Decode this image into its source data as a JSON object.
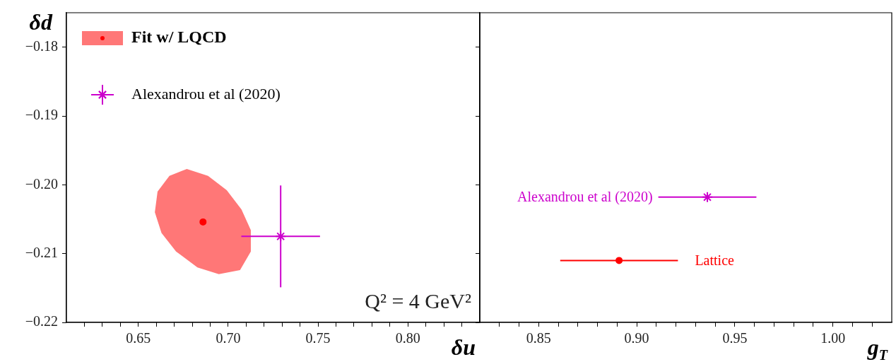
{
  "chart_data": [
    {
      "type": "scatter",
      "xlabel": "δu",
      "ylabel": "δd",
      "legend": "top left",
      "grid": false,
      "xlim": [
        0.61,
        0.84
      ],
      "ylim": [
        -0.22,
        -0.175
      ],
      "xticks": [
        {
          "value": 0.62,
          "label": null
        },
        {
          "value": 0.63,
          "label": null
        },
        {
          "value": 0.64,
          "label": null
        },
        {
          "value": 0.65,
          "label": "0.65"
        },
        {
          "value": 0.66,
          "label": null
        },
        {
          "value": 0.67,
          "label": null
        },
        {
          "value": 0.68,
          "label": null
        },
        {
          "value": 0.69,
          "label": null
        },
        {
          "value": 0.7,
          "label": "0.70"
        },
        {
          "value": 0.71,
          "label": null
        },
        {
          "value": 0.72,
          "label": null
        },
        {
          "value": 0.73,
          "label": null
        },
        {
          "value": 0.74,
          "label": null
        },
        {
          "value": 0.75,
          "label": "0.75"
        },
        {
          "value": 0.76,
          "label": null
        },
        {
          "value": 0.77,
          "label": null
        },
        {
          "value": 0.78,
          "label": null
        },
        {
          "value": 0.79,
          "label": null
        },
        {
          "value": 0.8,
          "label": "0.80"
        },
        {
          "value": 0.81,
          "label": null
        },
        {
          "value": 0.82,
          "label": null
        },
        {
          "value": 0.83,
          "label": null
        }
      ],
      "yticks": [
        {
          "value": -0.22,
          "label": "−0.22"
        },
        {
          "value": -0.21,
          "label": "−0.21"
        },
        {
          "value": -0.2,
          "label": "−0.20"
        },
        {
          "value": -0.19,
          "label": "−0.19"
        },
        {
          "value": -0.18,
          "label": "−0.18"
        }
      ],
      "series": [
        {
          "name": "Fit w/ LQCD",
          "type": "area",
          "color": "#ff7777",
          "x": [
            0.677,
            0.6888,
            0.6992,
            0.7074,
            0.7126,
            0.7126,
            0.7066,
            0.6948,
            0.6829,
            0.671,
            0.6629,
            0.6592,
            0.6607,
            0.6673
          ],
          "values": [
            -0.1977,
            -0.1987,
            -0.2008,
            -0.2036,
            -0.2066,
            -0.2097,
            -0.2124,
            -0.213,
            -0.212,
            -0.2097,
            -0.207,
            -0.204,
            -0.201,
            -0.1987
          ]
        },
        {
          "type": "scatter",
          "color": "#ff0000",
          "marker": "circle",
          "x": [
            0.686
          ],
          "values": [
            -0.2054
          ]
        },
        {
          "name": "Alexandrou et al (2020)",
          "type": "scatter",
          "color": "#cc00cc",
          "marker": "cross",
          "x": [
            0.7292
          ],
          "values": [
            -0.2075
          ],
          "errors": [
            0.0074
          ],
          "xerrors": [
            0.0219
          ]
        }
      ],
      "annotations": [
        "Q² = 4 GeV²"
      ]
    },
    {
      "type": "scatter",
      "xlabel": "g$_{T}$",
      "legend": false,
      "grid": false,
      "tick_labels": "x",
      "xlim": [
        0.82,
        1.03
      ],
      "ylim": [
        -0.22,
        -0.175
      ],
      "xticks": [
        {
          "value": 0.83,
          "label": null
        },
        {
          "value": 0.84,
          "label": null
        },
        {
          "value": 0.85,
          "label": "0.85"
        },
        {
          "value": 0.86,
          "label": null
        },
        {
          "value": 0.87,
          "label": null
        },
        {
          "value": 0.88,
          "label": null
        },
        {
          "value": 0.89,
          "label": null
        },
        {
          "value": 0.9,
          "label": "0.90"
        },
        {
          "value": 0.91,
          "label": null
        },
        {
          "value": 0.92,
          "label": null
        },
        {
          "value": 0.93,
          "label": null
        },
        {
          "value": 0.94,
          "label": null
        },
        {
          "value": 0.95,
          "label": "0.95"
        },
        {
          "value": 0.96,
          "label": null
        },
        {
          "value": 0.97,
          "label": null
        },
        {
          "value": 0.98,
          "label": null
        },
        {
          "value": 0.99,
          "label": null
        },
        {
          "value": 1.0,
          "label": "1.00"
        },
        {
          "value": 1.01,
          "label": null
        },
        {
          "value": 1.02,
          "label": null
        }
      ],
      "yticks": [
        {
          "value": -0.22,
          "label": null
        },
        {
          "value": -0.21,
          "label": null
        },
        {
          "value": -0.2,
          "label": null
        },
        {
          "value": -0.19,
          "label": null
        },
        {
          "value": -0.18,
          "label": null
        }
      ],
      "series": [
        {
          "name": "Alexandrou et al (2020)",
          "color": "#cc00cc",
          "marker": "cross",
          "x": [
            0.936
          ],
          "values": [
            -0.2018
          ],
          "xerrors": [
            0.025
          ]
        },
        {
          "name": "Lattice",
          "color": "#ff0000",
          "marker": "circle",
          "x": [
            0.891
          ],
          "values": [
            -0.211
          ],
          "xerrors": [
            0.03
          ]
        }
      ]
    }
  ]
}
